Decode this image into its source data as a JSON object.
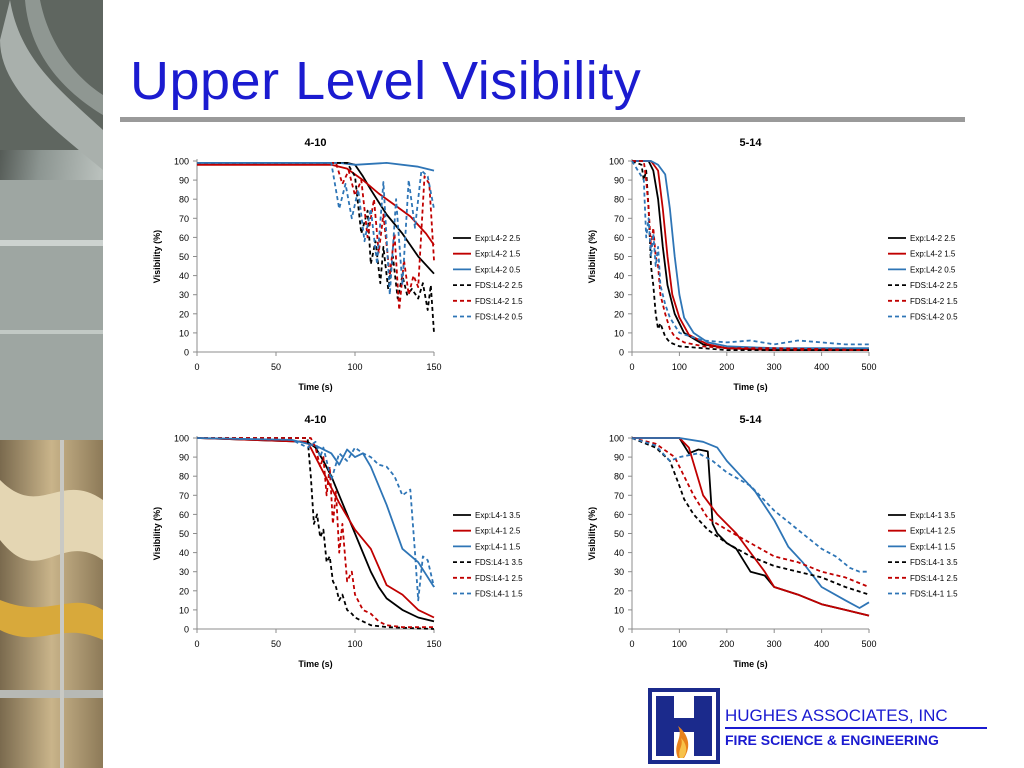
{
  "slide": {
    "title": "Upper Level Visibility",
    "company_name": "HUGHES ASSOCIATES, INC",
    "company_tagline": "FIRE SCIENCE & ENGINEERING",
    "logo_icon": "hughes-associates-logo",
    "photo_icon": "ceiling-ducts-photo"
  },
  "colors": {
    "title": "#1b1bd0",
    "black": "#000000",
    "red": "#c00000",
    "blue": "#2e75b6",
    "rule": "#9a9a9a"
  },
  "chart_data": [
    {
      "type": "line",
      "title": "4-10",
      "xlabel": "Time (s)",
      "ylabel": "Visibility (%)",
      "xlim": [
        0,
        150
      ],
      "ylim": [
        0,
        100
      ],
      "xticks": [
        0,
        50,
        100,
        150
      ],
      "yticks": [
        0,
        10,
        20,
        30,
        40,
        50,
        60,
        70,
        80,
        90,
        100
      ],
      "legend": "right",
      "series": [
        {
          "name": "Exp:L4-2 2.5",
          "color": "black",
          "dash": false,
          "x": [
            0,
            95,
            100,
            105,
            110,
            120,
            130,
            140,
            150
          ],
          "y": [
            99,
            99,
            98,
            92,
            85,
            72,
            62,
            50,
            41
          ]
        },
        {
          "name": "Exp:L4-2 1.5",
          "color": "red",
          "dash": false,
          "x": [
            0,
            85,
            95,
            105,
            115,
            125,
            135,
            145,
            150
          ],
          "y": [
            98,
            98,
            96,
            90,
            83,
            77,
            71,
            62,
            56
          ]
        },
        {
          "name": "Exp:L4-2 0.5",
          "color": "blue",
          "dash": false,
          "x": [
            0,
            90,
            100,
            120,
            140,
            150
          ],
          "y": [
            99,
            99,
            98,
            99,
            97,
            95
          ]
        },
        {
          "name": "FDS:L4-2 2.5",
          "color": "black",
          "dash": true,
          "x": [
            0,
            95,
            100,
            104,
            108,
            110,
            113,
            116,
            118,
            121,
            124,
            127,
            130,
            133,
            136,
            140,
            143,
            146,
            148,
            150
          ],
          "y": [
            99,
            99,
            92,
            62,
            74,
            46,
            58,
            36,
            55,
            33,
            50,
            28,
            40,
            30,
            33,
            28,
            36,
            22,
            35,
            10
          ]
        },
        {
          "name": "FDS:L4-2 1.5",
          "color": "red",
          "dash": true,
          "x": [
            0,
            88,
            92,
            96,
            100,
            104,
            108,
            112,
            115,
            118,
            122,
            125,
            128,
            131,
            134,
            137,
            140,
            144,
            147,
            150
          ],
          "y": [
            99,
            99,
            88,
            95,
            82,
            90,
            60,
            80,
            52,
            72,
            40,
            62,
            22,
            48,
            30,
            40,
            34,
            92,
            88,
            48
          ]
        },
        {
          "name": "FDS:L4-2 0.5",
          "color": "blue",
          "dash": true,
          "x": [
            0,
            85,
            90,
            94,
            98,
            102,
            106,
            110,
            114,
            118,
            122,
            126,
            130,
            134,
            138,
            142,
            146,
            150
          ],
          "y": [
            99,
            99,
            75,
            88,
            70,
            85,
            58,
            75,
            46,
            89,
            30,
            80,
            35,
            90,
            65,
            95,
            92,
            75
          ]
        }
      ]
    },
    {
      "type": "line",
      "title": "5-14",
      "xlabel": "Time (s)",
      "ylabel": "Visibility (%)",
      "xlim": [
        0,
        500
      ],
      "ylim": [
        0,
        100
      ],
      "xticks": [
        0,
        100,
        200,
        300,
        400,
        500
      ],
      "yticks": [
        0,
        10,
        20,
        30,
        40,
        50,
        60,
        70,
        80,
        90,
        100
      ],
      "legend": "right",
      "series": [
        {
          "name": "Exp:L4-2 2.5",
          "color": "black",
          "dash": false,
          "x": [
            0,
            35,
            45,
            55,
            65,
            75,
            90,
            110,
            150,
            200,
            300,
            500
          ],
          "y": [
            100,
            100,
            95,
            80,
            55,
            35,
            20,
            10,
            4,
            2,
            1,
            1
          ]
        },
        {
          "name": "Exp:L4-2 1.5",
          "color": "red",
          "dash": false,
          "x": [
            0,
            40,
            55,
            65,
            75,
            85,
            100,
            120,
            160,
            200,
            300,
            500
          ],
          "y": [
            100,
            100,
            95,
            75,
            50,
            30,
            18,
            9,
            4,
            2,
            1,
            1
          ]
        },
        {
          "name": "Exp:L4-2 0.5",
          "color": "blue",
          "dash": false,
          "x": [
            0,
            40,
            55,
            70,
            80,
            90,
            100,
            110,
            130,
            160,
            200,
            300,
            500
          ],
          "y": [
            100,
            100,
            98,
            93,
            75,
            50,
            30,
            18,
            10,
            5,
            3,
            2,
            2
          ]
        },
        {
          "name": "FDS:L4-2 2.5",
          "color": "black",
          "dash": true,
          "x": [
            0,
            20,
            25,
            30,
            35,
            40,
            45,
            50,
            55,
            60,
            70,
            80,
            100,
            150,
            200,
            300,
            500
          ],
          "y": [
            100,
            98,
            90,
            95,
            75,
            45,
            35,
            20,
            12,
            15,
            8,
            5,
            3,
            2,
            1,
            1,
            1
          ]
        },
        {
          "name": "FDS:L4-2 1.5",
          "color": "red",
          "dash": true,
          "x": [
            0,
            25,
            30,
            35,
            40,
            45,
            50,
            55,
            60,
            65,
            70,
            80,
            90,
            110,
            150,
            200,
            300,
            500
          ],
          "y": [
            100,
            100,
            90,
            75,
            55,
            65,
            50,
            45,
            30,
            25,
            20,
            12,
            8,
            5,
            3,
            2,
            2,
            1
          ]
        },
        {
          "name": "FDS:L4-2 0.5",
          "color": "blue",
          "dash": true,
          "x": [
            0,
            25,
            30,
            35,
            40,
            45,
            50,
            55,
            60,
            70,
            80,
            100,
            150,
            200,
            250,
            300,
            350,
            400,
            450,
            500
          ],
          "y": [
            100,
            90,
            60,
            70,
            50,
            62,
            45,
            55,
            35,
            25,
            18,
            10,
            6,
            5,
            6,
            4,
            6,
            5,
            4,
            4
          ]
        }
      ]
    },
    {
      "type": "line",
      "title": "4-10",
      "xlabel": "Time (s)",
      "ylabel": "Visibility (%)",
      "xlim": [
        0,
        150
      ],
      "ylim": [
        0,
        100
      ],
      "xticks": [
        0,
        50,
        100,
        150
      ],
      "yticks": [
        0,
        10,
        20,
        30,
        40,
        50,
        60,
        70,
        80,
        90,
        100
      ],
      "legend": "right",
      "series": [
        {
          "name": "Exp:L4-1 3.5",
          "color": "black",
          "dash": false,
          "x": [
            0,
            70,
            75,
            80,
            85,
            90,
            95,
            100,
            105,
            110,
            115,
            120,
            130,
            140,
            150
          ],
          "y": [
            100,
            98,
            95,
            88,
            80,
            70,
            60,
            50,
            40,
            30,
            22,
            16,
            10,
            6,
            4
          ]
        },
        {
          "name": "Exp:L4-1 2.5",
          "color": "red",
          "dash": false,
          "x": [
            0,
            70,
            75,
            80,
            90,
            100,
            110,
            120,
            130,
            140,
            150
          ],
          "y": [
            100,
            98,
            90,
            82,
            66,
            52,
            42,
            23,
            18,
            10,
            6
          ]
        },
        {
          "name": "Exp:L4-1 1.5",
          "color": "blue",
          "dash": false,
          "x": [
            0,
            60,
            75,
            85,
            90,
            95,
            100,
            105,
            110,
            120,
            130,
            140,
            150
          ],
          "y": [
            100,
            99,
            96,
            92,
            86,
            94,
            90,
            92,
            85,
            65,
            42,
            35,
            22
          ]
        },
        {
          "name": "FDS:L4-1 3.5",
          "color": "black",
          "dash": true,
          "x": [
            0,
            70,
            72,
            74,
            76,
            78,
            80,
            82,
            84,
            86,
            88,
            90,
            92,
            95,
            98,
            100,
            105,
            110,
            120,
            150
          ],
          "y": [
            100,
            100,
            80,
            55,
            60,
            48,
            52,
            35,
            38,
            25,
            22,
            15,
            18,
            10,
            8,
            6,
            4,
            2,
            1,
            0
          ]
        },
        {
          "name": "FDS:L4-1 2.5",
          "color": "red",
          "dash": true,
          "x": [
            0,
            72,
            75,
            78,
            80,
            82,
            84,
            86,
            88,
            90,
            92,
            95,
            98,
            100,
            105,
            110,
            115,
            120,
            130,
            150
          ],
          "y": [
            100,
            100,
            95,
            85,
            90,
            70,
            85,
            55,
            72,
            40,
            55,
            25,
            30,
            18,
            10,
            8,
            4,
            2,
            1,
            1
          ]
        },
        {
          "name": "FDS:L4-1 1.5",
          "color": "blue",
          "dash": true,
          "x": [
            0,
            60,
            70,
            75,
            78,
            80,
            85,
            90,
            95,
            100,
            105,
            110,
            115,
            120,
            125,
            130,
            135,
            138,
            140,
            143,
            146,
            150
          ],
          "y": [
            100,
            99,
            95,
            98,
            90,
            95,
            78,
            92,
            88,
            95,
            92,
            90,
            86,
            85,
            80,
            70,
            73,
            40,
            15,
            38,
            36,
            22
          ]
        }
      ]
    },
    {
      "type": "line",
      "title": "5-14",
      "xlabel": "Time (s)",
      "ylabel": "Visibility (%)",
      "xlim": [
        0,
        500
      ],
      "ylim": [
        0,
        100
      ],
      "xticks": [
        0,
        100,
        200,
        300,
        400,
        500
      ],
      "yticks": [
        0,
        10,
        20,
        30,
        40,
        50,
        60,
        70,
        80,
        90,
        100
      ],
      "legend": "right",
      "series": [
        {
          "name": "Exp:L4-1 3.5",
          "color": "black",
          "dash": false,
          "x": [
            0,
            100,
            120,
            140,
            160,
            170,
            180,
            200,
            220,
            250,
            280,
            300,
            350,
            400,
            450,
            500
          ],
          "y": [
            100,
            100,
            92,
            94,
            93,
            55,
            50,
            45,
            42,
            30,
            28,
            22,
            18,
            13,
            10,
            7
          ]
        },
        {
          "name": "Exp:L4-1 2.5",
          "color": "red",
          "dash": false,
          "x": [
            0,
            100,
            120,
            150,
            180,
            220,
            250,
            280,
            300,
            350,
            400,
            450,
            500
          ],
          "y": [
            100,
            100,
            95,
            70,
            60,
            50,
            40,
            30,
            22,
            18,
            13,
            10,
            7
          ]
        },
        {
          "name": "Exp:L4-1 1.5",
          "color": "blue",
          "dash": false,
          "x": [
            0,
            100,
            150,
            180,
            200,
            230,
            260,
            300,
            330,
            360,
            400,
            450,
            480,
            500
          ],
          "y": [
            100,
            100,
            98,
            95,
            88,
            80,
            72,
            57,
            43,
            35,
            22,
            15,
            11,
            14
          ]
        },
        {
          "name": "FDS:L4-1 3.5",
          "color": "black",
          "dash": true,
          "x": [
            0,
            50,
            80,
            100,
            110,
            130,
            160,
            200,
            250,
            300,
            350,
            400,
            450,
            500
          ],
          "y": [
            100,
            95,
            88,
            75,
            68,
            60,
            52,
            45,
            38,
            33,
            30,
            27,
            22,
            18
          ]
        },
        {
          "name": "FDS:L4-1 2.5",
          "color": "red",
          "dash": true,
          "x": [
            0,
            50,
            90,
            110,
            130,
            160,
            200,
            250,
            300,
            350,
            400,
            450,
            500
          ],
          "y": [
            100,
            97,
            90,
            80,
            70,
            58,
            52,
            45,
            38,
            35,
            30,
            27,
            22
          ]
        },
        {
          "name": "FDS:L4-1 1.5",
          "color": "blue",
          "dash": true,
          "x": [
            0,
            50,
            80,
            100,
            140,
            170,
            200,
            250,
            300,
            350,
            400,
            430,
            460,
            480,
            500
          ],
          "y": [
            100,
            96,
            88,
            90,
            92,
            88,
            82,
            75,
            62,
            52,
            42,
            38,
            32,
            30,
            30
          ]
        }
      ]
    }
  ]
}
